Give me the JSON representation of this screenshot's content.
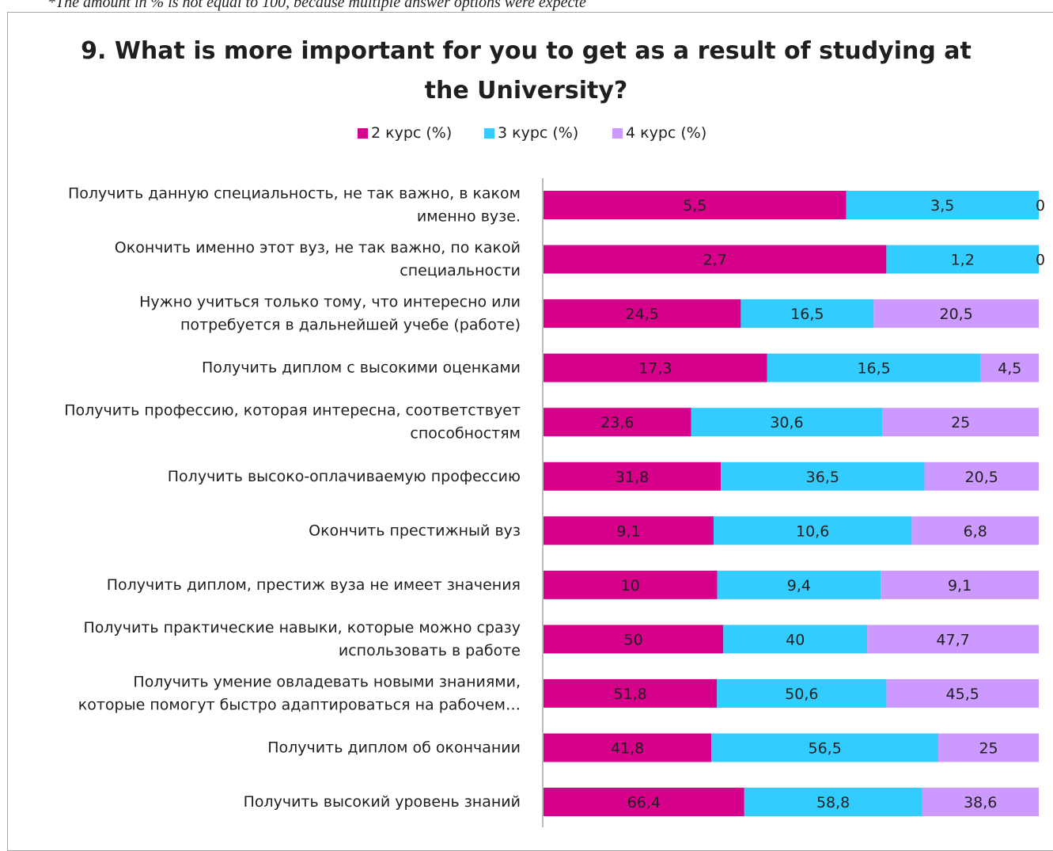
{
  "note": "*The amount in % is not equal to 100, because multiple answer options were expecte",
  "chart_data": {
    "type": "bar",
    "orientation": "horizontal",
    "stacked": true,
    "title": "9. What is more important for you to get as a result of studying at the University?",
    "title_lines": [
      "9. What is more important for you to get as a result of studying at",
      "the University?"
    ],
    "legend_position": "top",
    "grid": false,
    "xlabel": "",
    "ylabel": "",
    "categories": [
      [
        "Получить данную специальность, не так важно, в каком",
        "именно вузе."
      ],
      [
        "Окончить именно этот вуз, не так важно, по какой",
        "специальности"
      ],
      [
        "Нужно учиться только тому, что интересно или",
        "потребуется в дальнейшей учебе (работе)"
      ],
      [
        "Получить диплом с высокими оценками"
      ],
      [
        "Получить профессию, которая интересна, соответствует",
        "способностям"
      ],
      [
        "Получить высоко-оплачиваемую профессию"
      ],
      [
        "Окончить престижный вуз"
      ],
      [
        "Получить диплом, престиж вуза не имеет значения"
      ],
      [
        "Получить практические навыки, которые можно сразу",
        "использовать в работе"
      ],
      [
        "Получить умение овладевать новыми знаниями,",
        "которые помогут быстро адаптироваться на рабочем…"
      ],
      [
        "Получить диплом об окончании"
      ],
      [
        "Получить высокий уровень знаний"
      ]
    ],
    "series": [
      {
        "name": "2 курс (%)",
        "color": "#d6008a",
        "values": [
          5.5,
          2.7,
          24.5,
          17.3,
          23.6,
          31.8,
          9.1,
          10,
          50,
          51.8,
          41.8,
          66.4
        ],
        "labels": [
          "5,5",
          "2,7",
          "24,5",
          "17,3",
          "23,6",
          "31,8",
          "9,1",
          "10",
          "50",
          "51,8",
          "41,8",
          "66,4"
        ]
      },
      {
        "name": "3 курс (%)",
        "color": "#33ccff",
        "values": [
          3.5,
          1.2,
          16.5,
          16.5,
          30.6,
          36.5,
          10.6,
          9.4,
          40,
          50.6,
          56.5,
          58.8
        ],
        "labels": [
          "3,5",
          "1,2",
          "16,5",
          "16,5",
          "30,6",
          "36,5",
          "10,6",
          "9,4",
          "40",
          "50,6",
          "56,5",
          "58,8"
        ]
      },
      {
        "name": "4 курс (%)",
        "color": "#cc99ff",
        "values": [
          0,
          0,
          20.5,
          4.5,
          25,
          20.5,
          6.8,
          9.1,
          47.7,
          45.5,
          25,
          38.6
        ],
        "labels": [
          "0",
          "0",
          "20,5",
          "4,5",
          "25",
          "20,5",
          "6,8",
          "9,1",
          "47,7",
          "45,5",
          "25",
          "38,6"
        ]
      }
    ]
  }
}
